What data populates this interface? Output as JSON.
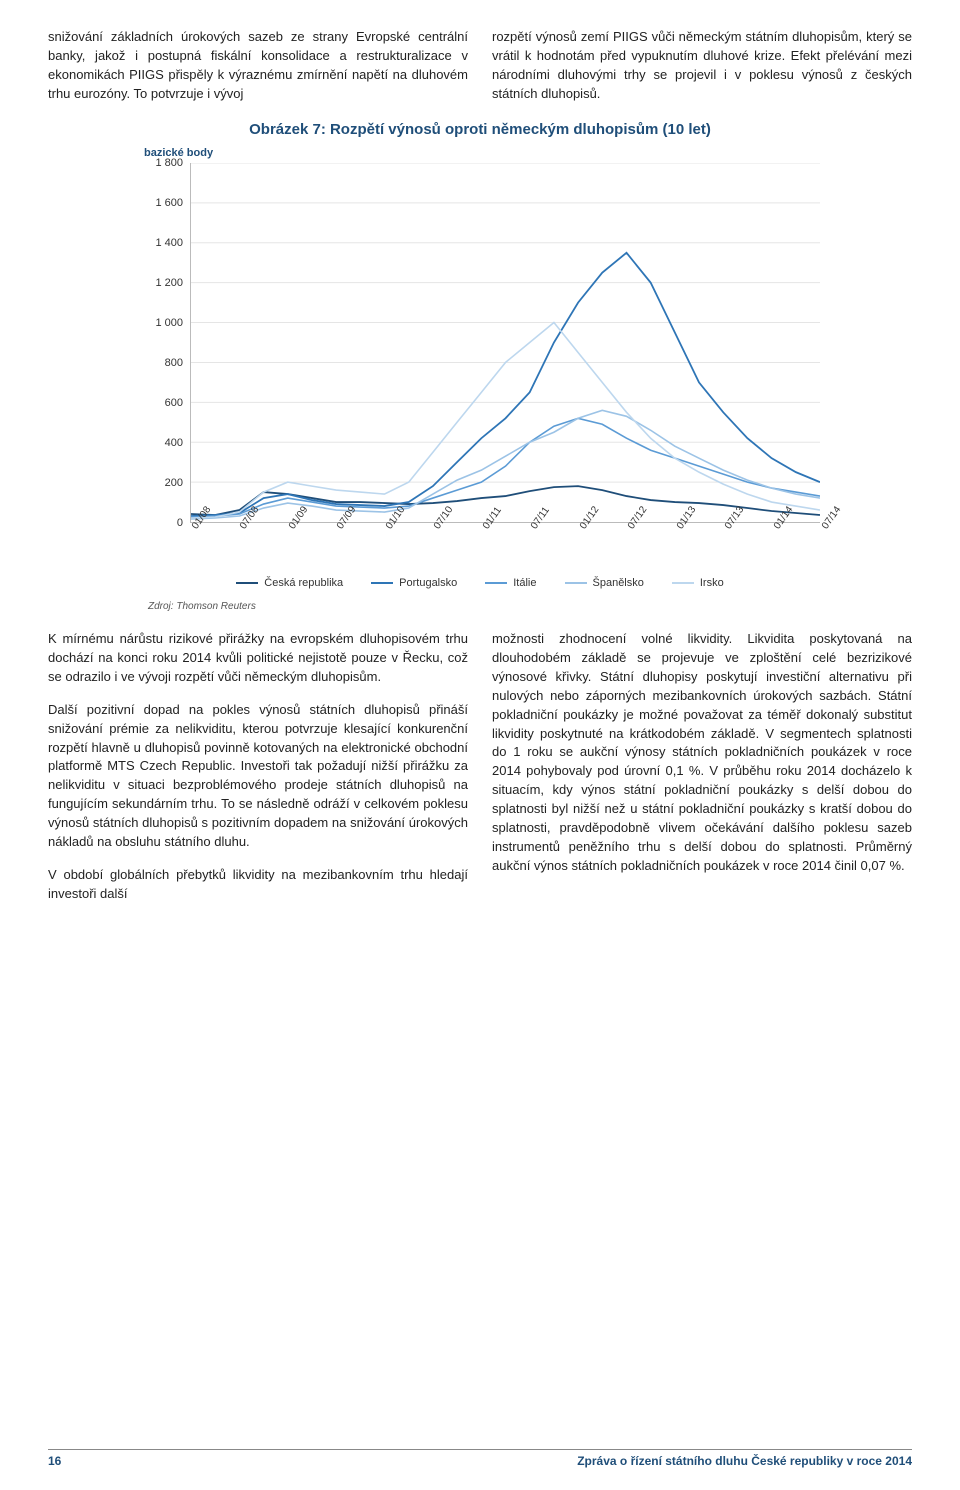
{
  "intro": {
    "left": "snižování základních úrokových sazeb ze strany Evropské centrální banky, jakož i postupná fiskální konsolidace a restrukturalizace v ekonomikách PIIGS přispěly k výraznému zmírnění napětí na dluhovém trhu eurozóny. To potvrzuje i vývoj",
    "right": "rozpětí výnosů zemí PIIGS vůči německým státním dluhopisům, který se vrátil k hodnotám před vypuknutím dluhové krize. Efekt přelévání mezi národními dluhovými trhy se projevil i v poklesu výnosů z českých státních dluhopisů."
  },
  "chart": {
    "title": "Obrázek 7: Rozpětí výnosů oproti německým dluhopisům (10 let)",
    "y_unit": "bazické body",
    "source": "Zdroj: Thomson Reuters",
    "ylim": [
      0,
      1800
    ],
    "ytick_step": 200,
    "yticks": [
      "0",
      "200",
      "400",
      "600",
      "800",
      "1 000",
      "1 200",
      "1 400",
      "1 600",
      "1 800"
    ],
    "xticks": [
      "01/08",
      "07/08",
      "01/09",
      "07/09",
      "01/10",
      "07/10",
      "01/11",
      "07/11",
      "01/12",
      "07/12",
      "01/13",
      "07/13",
      "01/14",
      "07/14"
    ],
    "series": [
      {
        "name": "Česká republika",
        "color": "#1F4E79",
        "width": 1.8,
        "values": [
          40,
          35,
          60,
          150,
          140,
          120,
          100,
          100,
          95,
          90,
          95,
          105,
          120,
          130,
          155,
          175,
          180,
          160,
          130,
          110,
          100,
          95,
          85,
          70,
          55,
          45,
          35
        ]
      },
      {
        "name": "Portugalsko",
        "color": "#2E75B6",
        "width": 1.8,
        "values": [
          30,
          35,
          45,
          120,
          140,
          110,
          90,
          85,
          80,
          100,
          180,
          300,
          420,
          520,
          650,
          900,
          1100,
          1250,
          1350,
          1200,
          950,
          700,
          550,
          420,
          320,
          250,
          200
        ]
      },
      {
        "name": "Itálie",
        "color": "#5B9BD5",
        "width": 1.6,
        "values": [
          25,
          30,
          40,
          90,
          120,
          100,
          80,
          75,
          70,
          80,
          120,
          160,
          200,
          280,
          400,
          480,
          520,
          490,
          420,
          360,
          320,
          280,
          240,
          200,
          170,
          150,
          130
        ]
      },
      {
        "name": "Španělsko",
        "color": "#9CC3E6",
        "width": 1.6,
        "values": [
          15,
          20,
          30,
          70,
          95,
          80,
          60,
          55,
          50,
          70,
          140,
          210,
          260,
          330,
          400,
          450,
          520,
          560,
          530,
          460,
          380,
          320,
          260,
          210,
          170,
          140,
          120
        ]
      },
      {
        "name": "Irsko",
        "color": "#BDD7EE",
        "width": 1.6,
        "values": [
          20,
          25,
          50,
          150,
          200,
          180,
          160,
          150,
          140,
          200,
          350,
          500,
          650,
          800,
          900,
          1000,
          850,
          700,
          550,
          420,
          320,
          250,
          190,
          140,
          100,
          80,
          60
        ]
      }
    ],
    "grid_color": "#e5e5e5",
    "background_color": "#ffffff",
    "label_fontsize": 11
  },
  "body": {
    "left": [
      "K mírnému nárůstu rizikové přirážky na evropském dluhopisovém trhu dochází na konci roku 2014 kvůli politické nejistotě pouze v Řecku, což se odrazilo i ve vývoji rozpětí vůči německým dluhopisům.",
      "Další pozitivní dopad na pokles výnosů státních dluhopisů přináší snižování prémie za nelikviditu, kterou potvrzuje klesající konkurenční rozpětí hlavně u dluhopisů povinně kotovaných na elektronické obchodní platformě MTS Czech Republic. Investoři tak požadují nižší přirážku za nelikviditu v situaci bezproblémového prodeje státních dluhopisů na fungujícím sekundárním trhu. To se následně odráží v celkovém poklesu výnosů státních dluhopisů s pozitivním dopadem na snižování úrokových nákladů na obsluhu státního dluhu.",
      "V období globálních přebytků likvidity na mezibankovním trhu hledají investoři další"
    ],
    "right": [
      "možnosti zhodnocení volné likvidity. Likvidita poskytovaná na dlouhodobém základě se projevuje ve zploštění celé bezrizikové výnosové křivky. Státní dluhopisy poskytují investiční alternativu při nulových nebo záporných mezibankovních úrokových sazbách. Státní pokladniční poukázky je možné považovat za téměř dokonalý substitut likvidity poskytnuté na krátkodobém základě. V segmentech splatnosti do 1 roku se aukční výnosy státních pokladničních poukázek v roce 2014 pohybovaly pod úrovní 0,1 %. V průběhu roku 2014 docházelo k situacím, kdy výnos státní pokladniční poukázky s delší dobou do splatnosti byl nižší než u státní pokladniční poukázky s kratší dobou do splatnosti, pravděpodobně vlivem očekávání dalšího poklesu sazeb instrumentů peněžního trhu s delší dobou do splatnosti. Průměrný aukční výnos státních pokladničních poukázek v roce 2014 činil 0,07 %."
    ]
  },
  "footer": {
    "page": "16",
    "title": "Zpráva o řízení státního dluhu České republiky v roce 2014"
  }
}
